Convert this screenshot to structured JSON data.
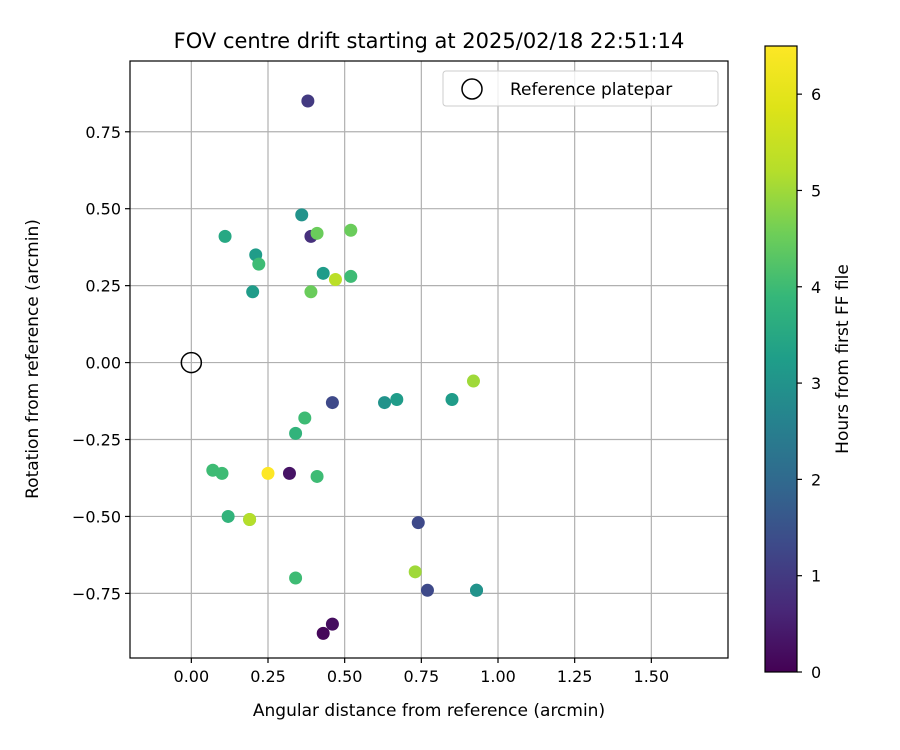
{
  "chart_data": {
    "type": "scatter",
    "title": "FOV centre drift starting at 2025/02/18 22:51:14",
    "xlabel": "Angular distance from reference (arcmin)",
    "ylabel": "Rotation from reference (arcmin)",
    "xlim": [
      -0.2,
      1.75
    ],
    "ylim": [
      -0.96,
      0.98
    ],
    "xticks": [
      0.0,
      0.25,
      0.5,
      0.75,
      1.0,
      1.25,
      1.5
    ],
    "xtick_labels": [
      "0.00",
      "0.25",
      "0.50",
      "0.75",
      "1.00",
      "1.25",
      "1.50"
    ],
    "yticks": [
      -0.75,
      -0.5,
      -0.25,
      0.0,
      0.25,
      0.5,
      0.75
    ],
    "ytick_labels": [
      "−0.75",
      "−0.50",
      "−0.25",
      "0.00",
      "0.25",
      "0.50",
      "0.75"
    ],
    "grid": true,
    "legend": {
      "placement": "top-right",
      "entries": [
        {
          "label": "Reference platepar",
          "marker": "open-circle"
        }
      ]
    },
    "reference_point": {
      "x": 0.0,
      "y": 0.0
    },
    "colorbar": {
      "label": "Hours from first FF file",
      "colormap": "viridis",
      "range": [
        0,
        6.5
      ],
      "ticks": [
        0,
        1,
        2,
        3,
        4,
        5,
        6
      ],
      "tick_labels": [
        "0",
        "1",
        "2",
        "3",
        "4",
        "5",
        "6"
      ]
    },
    "points": [
      {
        "x": 0.38,
        "y": 0.85,
        "hours": 1.0
      },
      {
        "x": 0.36,
        "y": 0.48,
        "hours": 3.0
      },
      {
        "x": 0.52,
        "y": 0.43,
        "hours": 4.5
      },
      {
        "x": 0.11,
        "y": 0.41,
        "hours": 3.5
      },
      {
        "x": 0.39,
        "y": 0.41,
        "hours": 0.8
      },
      {
        "x": 0.41,
        "y": 0.42,
        "hours": 4.5
      },
      {
        "x": 0.21,
        "y": 0.35,
        "hours": 3.2
      },
      {
        "x": 0.22,
        "y": 0.32,
        "hours": 4.0
      },
      {
        "x": 0.43,
        "y": 0.29,
        "hours": 3.2
      },
      {
        "x": 0.52,
        "y": 0.28,
        "hours": 4.0
      },
      {
        "x": 0.47,
        "y": 0.27,
        "hours": 5.3
      },
      {
        "x": 0.2,
        "y": 0.23,
        "hours": 3.2
      },
      {
        "x": 0.39,
        "y": 0.23,
        "hours": 4.5
      },
      {
        "x": 0.92,
        "y": -0.06,
        "hours": 5.0
      },
      {
        "x": 0.67,
        "y": -0.12,
        "hours": 3.2
      },
      {
        "x": 0.63,
        "y": -0.13,
        "hours": 3.0
      },
      {
        "x": 0.85,
        "y": -0.12,
        "hours": 3.2
      },
      {
        "x": 0.46,
        "y": -0.13,
        "hours": 1.3
      },
      {
        "x": 0.37,
        "y": -0.18,
        "hours": 4.0
      },
      {
        "x": 0.34,
        "y": -0.23,
        "hours": 3.8
      },
      {
        "x": 0.07,
        "y": -0.35,
        "hours": 4.0
      },
      {
        "x": 0.1,
        "y": -0.36,
        "hours": 4.0
      },
      {
        "x": 0.25,
        "y": -0.36,
        "hours": 6.5
      },
      {
        "x": 0.32,
        "y": -0.36,
        "hours": 0.3
      },
      {
        "x": 0.41,
        "y": -0.37,
        "hours": 4.0
      },
      {
        "x": 0.12,
        "y": -0.5,
        "hours": 3.8
      },
      {
        "x": 0.19,
        "y": -0.51,
        "hours": 4.0
      },
      {
        "x": 0.19,
        "y": -0.51,
        "hours": 5.2
      },
      {
        "x": 0.74,
        "y": -0.52,
        "hours": 1.3
      },
      {
        "x": 0.34,
        "y": -0.7,
        "hours": 4.0
      },
      {
        "x": 0.73,
        "y": -0.68,
        "hours": 5.0
      },
      {
        "x": 0.77,
        "y": -0.74,
        "hours": 1.3
      },
      {
        "x": 0.93,
        "y": -0.74,
        "hours": 2.5
      },
      {
        "x": 0.93,
        "y": -0.74,
        "hours": 3.0
      },
      {
        "x": 0.46,
        "y": -0.85,
        "hours": 0.2
      },
      {
        "x": 0.43,
        "y": -0.88,
        "hours": 0.1
      }
    ]
  }
}
